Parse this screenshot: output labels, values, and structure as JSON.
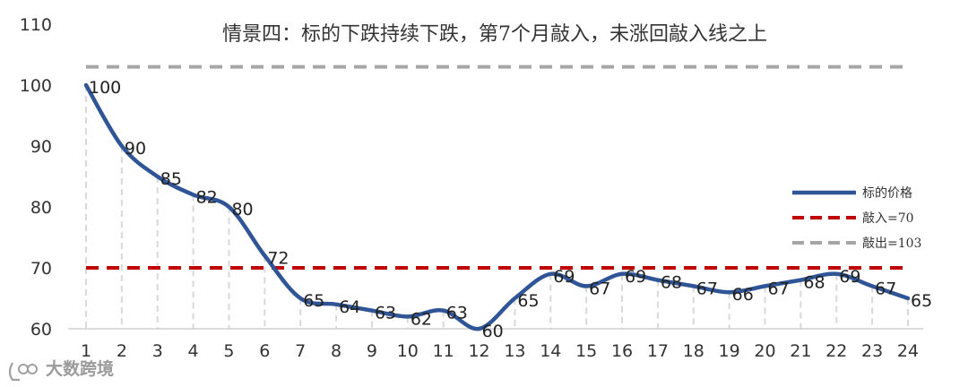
{
  "chart_data": {
    "type": "line",
    "title": "情景四：标的下跌持续下跌，第7个月敲入，未涨回敲入线之上",
    "x": [
      1,
      2,
      3,
      4,
      5,
      6,
      7,
      8,
      9,
      10,
      11,
      12,
      13,
      14,
      15,
      16,
      17,
      18,
      19,
      20,
      21,
      22,
      23,
      24
    ],
    "series": [
      {
        "name": "标的价格",
        "color": "#2f5597",
        "style": "solid-smooth",
        "values": [
          100,
          90,
          85,
          82,
          80,
          72,
          65,
          64,
          63,
          62,
          63,
          60,
          65,
          69,
          67,
          69,
          68,
          67,
          66,
          67,
          68,
          69,
          67,
          65
        ]
      }
    ],
    "reference_lines": [
      {
        "name": "敲入=70",
        "value": 70,
        "color": "#c00000",
        "style": "dashed"
      },
      {
        "name": "敲出=103",
        "value": 103,
        "color": "#a6a6a6",
        "style": "dashed"
      }
    ],
    "data_labels": [
      "100",
      "90",
      "85",
      "82",
      "80",
      "72",
      "65",
      "64",
      "63",
      "62",
      "63",
      "60",
      "65",
      "69",
      "67",
      "69",
      "68",
      "67",
      "66",
      "67",
      "68",
      "69",
      "67",
      "65"
    ],
    "ylim": [
      60,
      110
    ],
    "yticks": [
      60,
      70,
      80,
      90,
      100,
      110
    ],
    "xlabel": "",
    "ylabel": "",
    "grid": "vertical dashed drop lines",
    "legend": {
      "position": "right",
      "items": [
        "标的价格",
        "敲入=70",
        "敲出=103"
      ]
    }
  },
  "watermark": {
    "text": "大数跨境"
  }
}
